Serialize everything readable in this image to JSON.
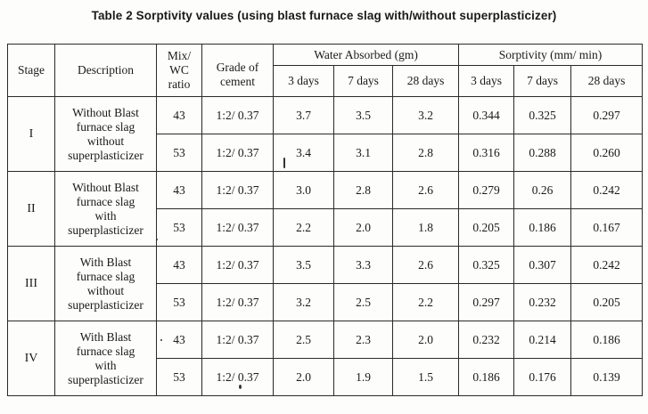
{
  "title": "Table 2 Sorptivity values (using blast furnace slag with/without  superplasticizer)",
  "headers": {
    "stage": "Stage",
    "description": "Description",
    "mix_line1": "Mix/",
    "mix_line2": "WC",
    "mix_line3": "ratio",
    "grade_line1": "Grade of",
    "grade_line2": "cement",
    "water_absorbed": "Water Absorbed  (gm)",
    "sorptivity": "Sorptivity (mm/  min)",
    "wa_3": "3 days",
    "wa_7": "7 days",
    "wa_28": "28 days",
    "s_3": "3 days",
    "s_7": "7 days",
    "s_28": "28 days"
  },
  "groups": [
    {
      "stage": "I",
      "desc_lines": [
        "Without Blast",
        "furnace slag",
        "without",
        "superplasticizer"
      ],
      "rows": [
        {
          "grade": "43",
          "mix": "1:2/ 0.37",
          "wa3": "3.7",
          "wa7": "3.5",
          "wa28": "3.2",
          "s3": "0.344",
          "s7": "0.325",
          "s28": "0.297"
        },
        {
          "grade": "53",
          "mix": "1:2/ 0.37",
          "wa3": "3.4",
          "wa7": "3.1",
          "wa28": "2.8",
          "s3": "0.316",
          "s7": "0.288",
          "s28": "0.260"
        }
      ]
    },
    {
      "stage": "II",
      "desc_lines": [
        "Without Blast",
        "furnace slag",
        "with",
        "superplasticizer"
      ],
      "rows": [
        {
          "grade": "43",
          "mix": "1:2/ 0.37",
          "wa3": "3.0",
          "wa7": "2.8",
          "wa28": "2.6",
          "s3": "0.279",
          "s7": "0.26",
          "s28": "0.242"
        },
        {
          "grade": "53",
          "mix": "1:2/ 0.37",
          "wa3": "2.2",
          "wa7": "2.0",
          "wa28": "1.8",
          "s3": "0.205",
          "s7": "0.186",
          "s28": "0.167"
        }
      ]
    },
    {
      "stage": "III",
      "desc_lines": [
        "With Blast",
        "furnace slag",
        "without",
        "superplasticizer"
      ],
      "rows": [
        {
          "grade": "43",
          "mix": "1:2/ 0.37",
          "wa3": "3.5",
          "wa7": "3.3",
          "wa28": "2.6",
          "s3": "0.325",
          "s7": "0.307",
          "s28": "0.242"
        },
        {
          "grade": "53",
          "mix": "1:2/ 0.37",
          "wa3": "3.2",
          "wa7": "2.5",
          "wa28": "2.2",
          "s3": "0.297",
          "s7": "0.232",
          "s28": "0.205"
        }
      ]
    },
    {
      "stage": "IV",
      "desc_lines": [
        "With Blast",
        "furnace slag",
        "with",
        "superplasticizer"
      ],
      "rows": [
        {
          "grade": "43",
          "mix": "1:2/ 0.37",
          "wa3": "2.5",
          "wa7": "2.3",
          "wa28": "2.0",
          "s3": "0.232",
          "s7": "0.214",
          "s28": "0.186"
        },
        {
          "grade": "53",
          "mix": "1:2/ 0.37",
          "wa3": "2.0",
          "wa7": "1.9",
          "wa28": "1.5",
          "s3": "0.186",
          "s7": "0.176",
          "s28": "0.139"
        }
      ]
    }
  ]
}
